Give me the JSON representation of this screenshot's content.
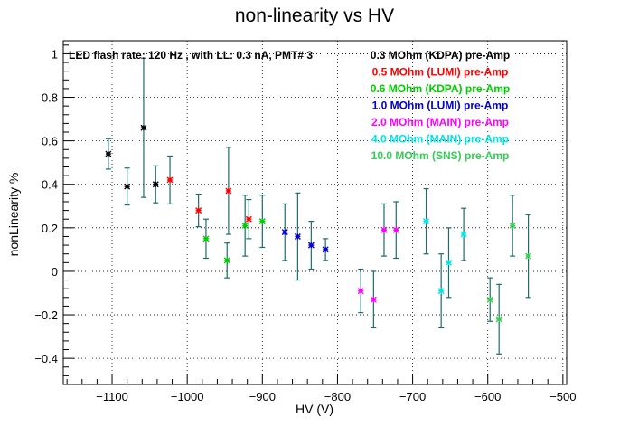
{
  "chart_data": {
    "type": "scatter",
    "title": "non-linearity vs HV",
    "annotation": "LED flash rate: 120 Hz , with LL: 0.3 nA, PMT# 3",
    "xlabel": "HV (V)",
    "ylabel": "nonLinearity %",
    "xlim": [
      -1165,
      -495
    ],
    "ylim": [
      -0.52,
      1.06
    ],
    "x_ticks": [
      -1100,
      -1000,
      -900,
      -800,
      -700,
      -600,
      -500
    ],
    "x_tick_labels": [
      "−1100",
      "−1000",
      "−900",
      "−800",
      "−700",
      "−600",
      "−500"
    ],
    "y_ticks": [
      -0.4,
      -0.2,
      0,
      0.2,
      0.4,
      0.6,
      0.8,
      1
    ],
    "y_tick_labels": [
      "−0.4",
      "−0.2",
      "0",
      "0.2",
      "0.4",
      "0.6",
      "0.8",
      "1"
    ],
    "grid": true,
    "legend_position": "top-right",
    "error_bar_color": "#1f6b6b",
    "series": [
      {
        "name": "0.3 MOhm (KDPA) pre-Amp",
        "color": "#000000",
        "points": [
          {
            "x": -1105,
            "y": 0.54,
            "err": 0.07
          },
          {
            "x": -1080,
            "y": 0.39,
            "err": 0.085
          },
          {
            "x": -1058,
            "y": 0.66,
            "err": 0.32
          },
          {
            "x": -1042,
            "y": 0.4,
            "err": 0.085
          }
        ]
      },
      {
        "name": "0.5 MOhm (LUMI) pre-Amp",
        "color": "#ff0000",
        "points": [
          {
            "x": -1023,
            "y": 0.42,
            "err": 0.11
          },
          {
            "x": -985,
            "y": 0.28,
            "err": 0.075
          },
          {
            "x": -945,
            "y": 0.37,
            "err": 0.2
          },
          {
            "x": -918,
            "y": 0.24,
            "err": 0.09
          }
        ]
      },
      {
        "name": "0.6 MOhm (KDPA) pre-Amp",
        "color": "#00cc00",
        "points": [
          {
            "x": -975,
            "y": 0.15,
            "err": 0.09
          },
          {
            "x": -947,
            "y": 0.05,
            "err": 0.08
          },
          {
            "x": -923,
            "y": 0.21,
            "err": 0.14
          },
          {
            "x": -900,
            "y": 0.23,
            "err": 0.12
          }
        ]
      },
      {
        "name": "1.0 MOhm (LUMI) pre-Amp",
        "color": "#0000cc",
        "points": [
          {
            "x": -870,
            "y": 0.18,
            "err": 0.13
          },
          {
            "x": -853,
            "y": 0.16,
            "err": 0.2
          },
          {
            "x": -835,
            "y": 0.12,
            "err": 0.11
          },
          {
            "x": -816,
            "y": 0.1,
            "err": 0.05
          }
        ]
      },
      {
        "name": "2.0 MOhm (MAIN) pre-Amp",
        "color": "#ff00ff",
        "points": [
          {
            "x": -769,
            "y": -0.09,
            "err": 0.1
          },
          {
            "x": -752,
            "y": -0.13,
            "err": 0.13
          },
          {
            "x": -738,
            "y": 0.19,
            "err": 0.12
          },
          {
            "x": -722,
            "y": 0.19,
            "err": 0.13
          }
        ]
      },
      {
        "name": "4.0 MOhm (MAIN) pre-Amp",
        "color": "#00e5e5",
        "points": [
          {
            "x": -682,
            "y": 0.23,
            "err": 0.15
          },
          {
            "x": -662,
            "y": -0.09,
            "err": 0.17
          },
          {
            "x": -652,
            "y": 0.04,
            "err": 0.16
          },
          {
            "x": -632,
            "y": 0.17,
            "err": 0.12
          }
        ]
      },
      {
        "name": "10.0 MOhm (SNS) pre-Amp",
        "color": "#33cc55",
        "points": [
          {
            "x": -597,
            "y": -0.13,
            "err": 0.1
          },
          {
            "x": -585,
            "y": -0.22,
            "err": 0.16
          },
          {
            "x": -567,
            "y": 0.21,
            "err": 0.14
          },
          {
            "x": -546,
            "y": 0.07,
            "err": 0.19
          }
        ]
      }
    ]
  }
}
